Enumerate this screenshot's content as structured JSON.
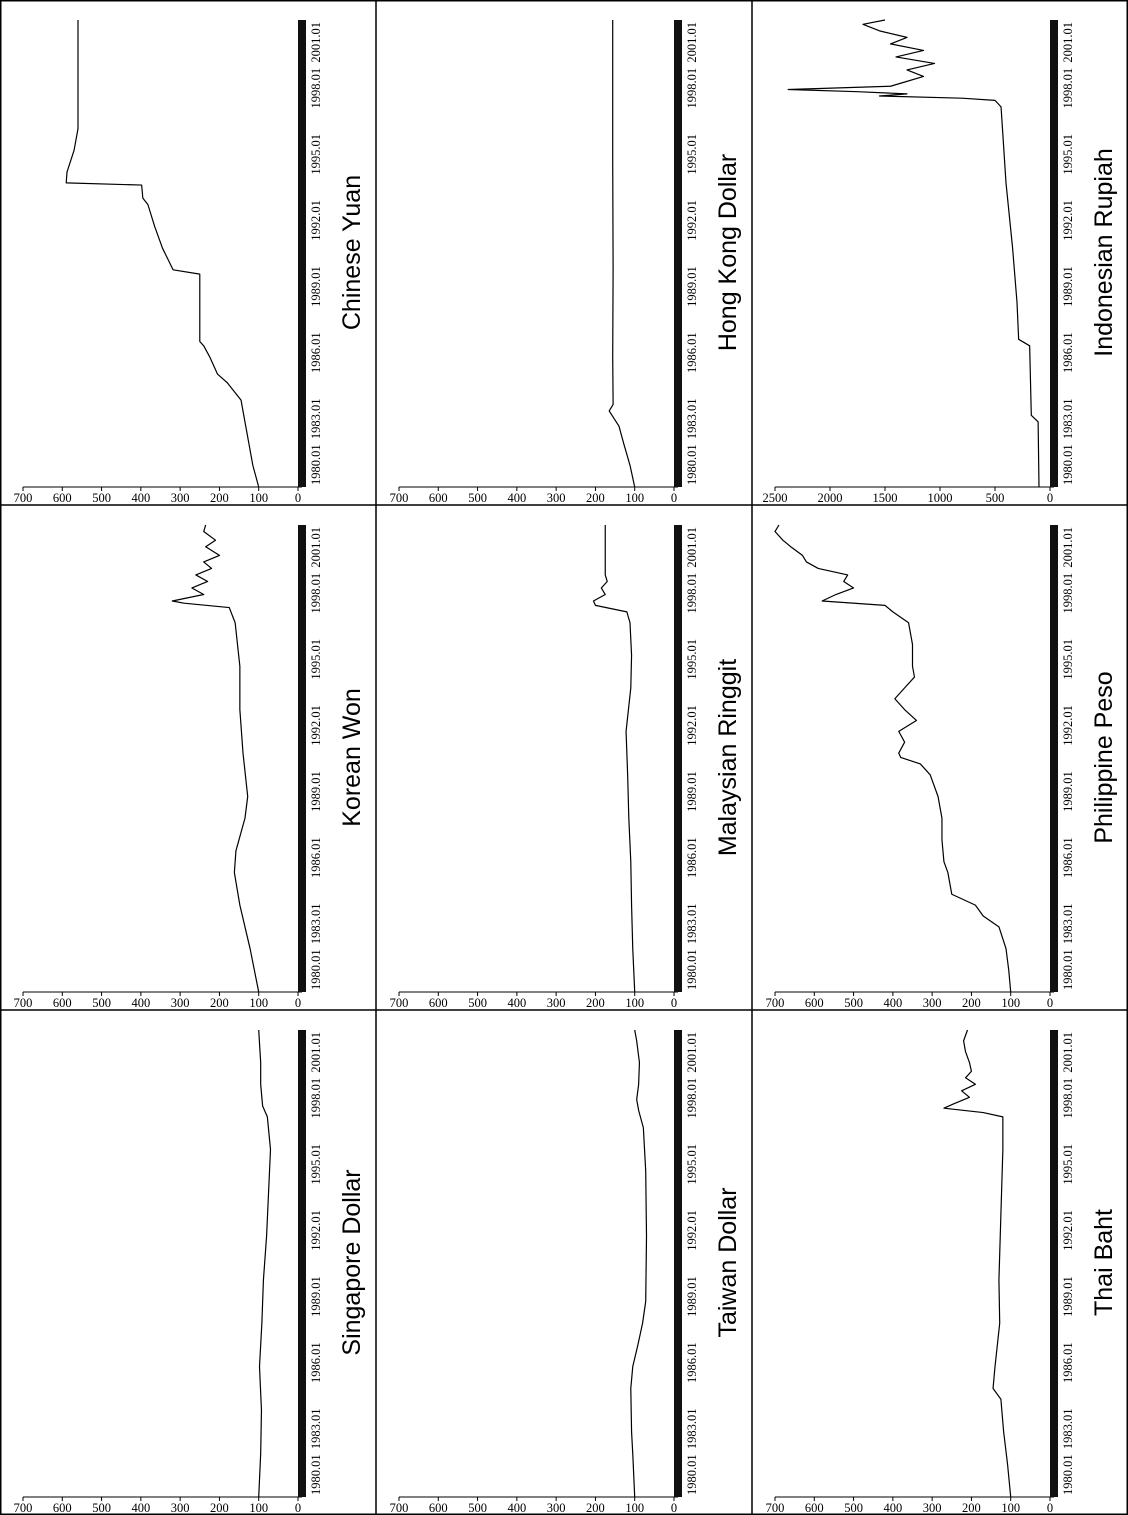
{
  "chart_data": [
    {
      "type": "line",
      "title": "Chinese Yuan",
      "x": [
        "1980.01",
        "1983.01",
        "1986.01",
        "1989.01",
        "1992.01",
        "1995.01",
        "1998.01",
        "2001.01"
      ],
      "ylim": [
        0,
        700
      ],
      "yticks": [
        0,
        100,
        200,
        300,
        400,
        500,
        600,
        700
      ],
      "series": [
        {
          "x": [
            1980.0,
            1981.0,
            1982.0,
            1983.0,
            1984.0,
            1984.8,
            1985.2,
            1986.0,
            1986.5,
            1986.7,
            1989.8,
            1990.0,
            1991.0,
            1992.0,
            1993.0,
            1993.3,
            1993.9,
            1994.0,
            1994.5,
            1995.5,
            1996.5,
            2001.5
          ],
          "y": [
            100,
            115,
            125,
            135,
            145,
            180,
            205,
            225,
            240,
            250,
            250,
            318,
            345,
            365,
            382,
            395,
            398,
            590,
            588,
            570,
            560,
            560
          ]
        }
      ]
    },
    {
      "type": "line",
      "title": "Hong Kong Dollar",
      "x": [
        "1980.01",
        "1983.01",
        "1986.01",
        "1989.01",
        "1992.01",
        "1995.01",
        "1998.01",
        "2001.01"
      ],
      "ylim": [
        0,
        700
      ],
      "yticks": [
        0,
        100,
        200,
        300,
        400,
        500,
        600,
        700
      ],
      "series": [
        {
          "x": [
            1980.0,
            1981.0,
            1982.0,
            1982.8,
            1983.5,
            1983.8,
            1986.0,
            1990.0,
            1995.0,
            2001.5
          ],
          "y": [
            100,
            112,
            128,
            140,
            165,
            155,
            156,
            155,
            156,
            156
          ]
        }
      ]
    },
    {
      "type": "line",
      "title": "Indonesian Rupiah",
      "x": [
        "1980.01",
        "1983.01",
        "1986.01",
        "1989.01",
        "1992.01",
        "1995.01",
        "1998.01",
        "2001.01"
      ],
      "ylim": [
        0,
        2500
      ],
      "yticks": [
        0,
        500,
        1000,
        1500,
        2000,
        2500
      ],
      "series": [
        {
          "x": [
            1980.0,
            1983.0,
            1983.3,
            1986.5,
            1986.8,
            1988.5,
            1991.0,
            1994.0,
            1997.5,
            1997.8,
            1997.9,
            1998.0,
            1998.1,
            1998.2,
            1998.3,
            1998.45,
            1998.6,
            1998.9,
            1999.2,
            1999.5,
            1999.8,
            2000.1,
            2000.4,
            2000.7,
            2001.0,
            2001.3,
            2001.5
          ],
          "y": [
            100,
            108,
            170,
            185,
            285,
            300,
            340,
            400,
            445,
            500,
            800,
            1550,
            1300,
            1750,
            2380,
            1450,
            1350,
            1150,
            1300,
            1050,
            1400,
            1150,
            1450,
            1300,
            1550,
            1700,
            1500
          ]
        }
      ]
    },
    {
      "type": "line",
      "title": "Korean Won",
      "x": [
        "1980.01",
        "1983.01",
        "1986.01",
        "1989.01",
        "1992.01",
        "1995.01",
        "1998.01",
        "2001.01"
      ],
      "ylim": [
        0,
        700
      ],
      "yticks": [
        0,
        100,
        200,
        300,
        400,
        500,
        600,
        700
      ],
      "series": [
        {
          "x": [
            1980.0,
            1982.0,
            1984.0,
            1985.5,
            1986.5,
            1988.0,
            1989.0,
            1991.0,
            1993.0,
            1995.0,
            1997.0,
            1997.7,
            1997.9,
            1998.0,
            1998.3,
            1998.6,
            1998.9,
            1999.2,
            1999.5,
            1999.8,
            2000.1,
            2000.5,
            2000.8,
            2001.2,
            2001.5
          ],
          "y": [
            100,
            122,
            148,
            162,
            158,
            135,
            128,
            140,
            148,
            148,
            160,
            175,
            290,
            320,
            240,
            270,
            230,
            260,
            220,
            240,
            200,
            235,
            210,
            240,
            235
          ]
        }
      ]
    },
    {
      "type": "line",
      "title": "Malaysian Ringgit",
      "x": [
        "1980.01",
        "1983.01",
        "1986.01",
        "1989.01",
        "1992.01",
        "1995.01",
        "1998.01",
        "2001.01"
      ],
      "ylim": [
        0,
        700
      ],
      "yticks": [
        0,
        100,
        200,
        300,
        400,
        500,
        600,
        700
      ],
      "series": [
        {
          "x": [
            1980.0,
            1982.0,
            1984.0,
            1986.0,
            1988.0,
            1990.0,
            1992.0,
            1994.0,
            1995.5,
            1997.0,
            1997.5,
            1997.8,
            1998.0,
            1998.3,
            1998.6,
            1998.9,
            1999.2,
            2001.5
          ],
          "y": [
            100,
            105,
            108,
            110,
            115,
            118,
            122,
            110,
            108,
            112,
            120,
            200,
            205,
            175,
            185,
            170,
            175,
            175
          ]
        }
      ]
    },
    {
      "type": "line",
      "title": "Philippine Peso",
      "x": [
        "1980.01",
        "1983.01",
        "1986.01",
        "1989.01",
        "1992.01",
        "1995.01",
        "1998.01",
        "2001.01"
      ],
      "ylim": [
        0,
        700
      ],
      "yticks": [
        0,
        100,
        200,
        300,
        400,
        500,
        600,
        700
      ],
      "series": [
        {
          "x": [
            1980.0,
            1981.0,
            1982.0,
            1983.0,
            1983.5,
            1984.0,
            1984.5,
            1985.0,
            1985.5,
            1986.0,
            1987.0,
            1988.0,
            1989.0,
            1990.0,
            1990.5,
            1990.8,
            1991.0,
            1991.5,
            1992.0,
            1992.5,
            1993.0,
            1993.5,
            1994.0,
            1994.5,
            1995.0,
            1996.0,
            1997.0,
            1997.5,
            1997.8,
            1998.0,
            1998.3,
            1998.6,
            1998.9,
            1999.2,
            1999.5,
            1999.8,
            2000.1,
            2000.5,
            2000.8,
            2001.2,
            2001.5
          ],
          "y": [
            100,
            105,
            112,
            130,
            170,
            190,
            250,
            255,
            260,
            270,
            275,
            275,
            285,
            305,
            330,
            380,
            385,
            370,
            385,
            340,
            370,
            395,
            370,
            345,
            350,
            350,
            360,
            400,
            420,
            580,
            545,
            500,
            525,
            515,
            590,
            620,
            630,
            660,
            680,
            700,
            690
          ]
        }
      ]
    },
    {
      "type": "line",
      "title": "Singapore Dollar",
      "x": [
        "1980.01",
        "1983.01",
        "1986.01",
        "1989.01",
        "1992.01",
        "1995.01",
        "1998.01",
        "2001.01"
      ],
      "ylim": [
        0,
        700
      ],
      "yticks": [
        0,
        100,
        200,
        300,
        400,
        500,
        600,
        700
      ],
      "series": [
        {
          "x": [
            1980.0,
            1982.0,
            1984.0,
            1986.0,
            1988.0,
            1990.0,
            1992.0,
            1994.0,
            1996.0,
            1997.5,
            1998.0,
            1999.0,
            2000.0,
            2001.5
          ],
          "y": [
            100,
            95,
            93,
            98,
            92,
            88,
            80,
            75,
            70,
            78,
            90,
            95,
            95,
            100
          ]
        }
      ]
    },
    {
      "type": "line",
      "title": "Taiwan Dollar",
      "x": [
        "1980.01",
        "1983.01",
        "1986.01",
        "1989.01",
        "1992.01",
        "1995.01",
        "1998.01",
        "2001.01"
      ],
      "ylim": [
        0,
        700
      ],
      "yticks": [
        0,
        100,
        200,
        300,
        400,
        500,
        600,
        700
      ],
      "series": [
        {
          "x": [
            1980.0,
            1982.0,
            1983.0,
            1985.0,
            1986.0,
            1987.0,
            1988.0,
            1989.0,
            1992.0,
            1995.0,
            1997.0,
            1997.8,
            1998.3,
            1999.0,
            2000.0,
            2001.0,
            2001.5
          ],
          "y": [
            100,
            105,
            108,
            110,
            105,
            92,
            80,
            72,
            70,
            72,
            78,
            90,
            95,
            90,
            88,
            95,
            100
          ]
        }
      ]
    },
    {
      "type": "line",
      "title": "Thai Baht",
      "x": [
        "1980.01",
        "1983.01",
        "1986.01",
        "1989.01",
        "1992.01",
        "1995.01",
        "1998.01",
        "2001.01"
      ],
      "ylim": [
        0,
        700
      ],
      "yticks": [
        0,
        100,
        200,
        300,
        400,
        500,
        600,
        700
      ],
      "series": [
        {
          "x": [
            1980.0,
            1981.5,
            1983.0,
            1984.5,
            1985.0,
            1986.0,
            1988.0,
            1990.0,
            1993.0,
            1996.0,
            1997.5,
            1997.7,
            1997.9,
            1998.1,
            1998.4,
            1998.7,
            1999.0,
            1999.3,
            1999.6,
            2000.0,
            2000.5,
            2001.0,
            2001.5
          ],
          "y": [
            100,
            108,
            118,
            125,
            145,
            140,
            128,
            130,
            125,
            120,
            120,
            170,
            270,
            245,
            205,
            225,
            190,
            215,
            200,
            205,
            215,
            220,
            210
          ]
        }
      ]
    }
  ]
}
